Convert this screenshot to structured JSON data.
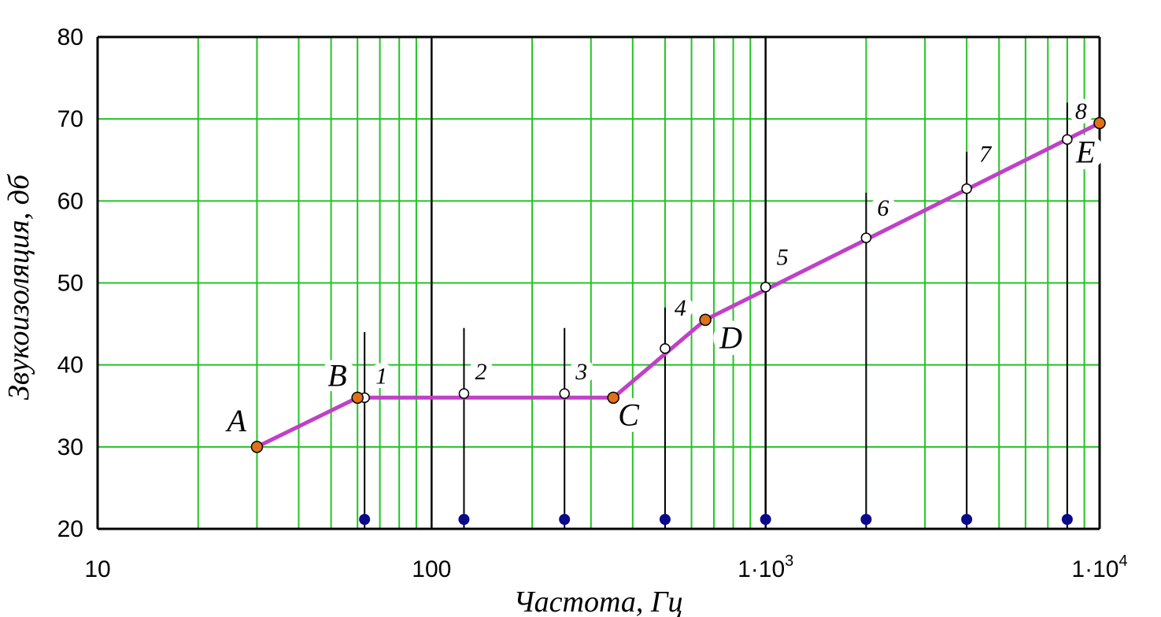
{
  "chart_data": {
    "type": "line",
    "xscale": "log",
    "xlim": [
      10,
      10000
    ],
    "ylim": [
      20,
      80
    ],
    "grid": true,
    "xlabel": "Частота, Гц",
    "ylabel": "Звукоизоляция, дб",
    "x_ticks": [
      {
        "value": 10,
        "label": "10"
      },
      {
        "value": 100,
        "label": "100"
      },
      {
        "value": 1000,
        "label": "1·10",
        "exp": "3"
      },
      {
        "value": 10000,
        "label": "1·10",
        "exp": "4"
      }
    ],
    "y_ticks": [
      20,
      30,
      40,
      50,
      60,
      70,
      80
    ],
    "y_tick_labels": [
      "20",
      "30",
      "40",
      "50",
      "60",
      "70",
      "80"
    ],
    "colors": {
      "grid_minor": "#22c422",
      "grid_major": "#000000",
      "curve": "#c040c8",
      "corner_point": "#e0701a",
      "band_point": "#ffffff",
      "base_marker": "#0a0a8a"
    },
    "curve": {
      "name": "",
      "points": [
        {
          "x": 30,
          "y": 30
        },
        {
          "x": 60,
          "y": 36
        },
        {
          "x": 350,
          "y": 36
        },
        {
          "x": 660,
          "y": 45.5
        },
        {
          "x": 10000,
          "y": 69.5
        }
      ]
    },
    "corner_points": [
      {
        "label": "A",
        "x": 30,
        "y": 30
      },
      {
        "label": "B",
        "x": 60,
        "y": 36
      },
      {
        "label": "C",
        "x": 350,
        "y": 36
      },
      {
        "label": "D",
        "x": 660,
        "y": 45.5
      },
      {
        "label": "E",
        "x": 10000,
        "y": 69.5
      }
    ],
    "band_points": [
      {
        "label": "1",
        "x": 63,
        "y": 36,
        "stem_top": 44
      },
      {
        "label": "2",
        "x": 125,
        "y": 36.5,
        "stem_top": 44.5
      },
      {
        "label": "3",
        "x": 250,
        "y": 36.5,
        "stem_top": 44.5
      },
      {
        "label": "4",
        "x": 500,
        "y": 42,
        "stem_top": 47
      },
      {
        "label": "5",
        "x": 1000,
        "y": 49.5,
        "stem_top": 57
      },
      {
        "label": "6",
        "x": 2000,
        "y": 55.5,
        "stem_top": 61
      },
      {
        "label": "7",
        "x": 4000,
        "y": 61.5,
        "stem_top": 66
      },
      {
        "label": "8",
        "x": 8000,
        "y": 67.5,
        "stem_top": 72
      }
    ],
    "base_markers": [
      63,
      125,
      250,
      500,
      1000,
      2000,
      4000,
      8000
    ]
  }
}
